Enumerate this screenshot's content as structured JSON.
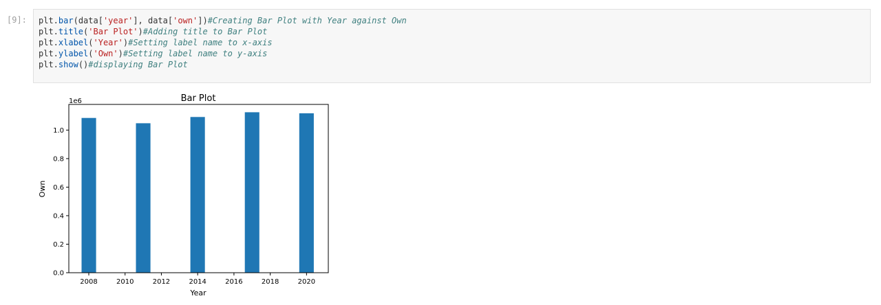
{
  "prompt": "[9]:",
  "code_lines": [
    [
      {
        "t": "plt.",
        "c": "plain"
      },
      {
        "t": "bar",
        "c": "fn"
      },
      {
        "t": "(data[",
        "c": "plain"
      },
      {
        "t": "'year'",
        "c": "str"
      },
      {
        "t": "], data[",
        "c": "plain"
      },
      {
        "t": "'own'",
        "c": "str"
      },
      {
        "t": "])",
        "c": "plain"
      },
      {
        "t": "#Creating Bar Plot with Year against Own",
        "c": "com"
      }
    ],
    [
      {
        "t": "plt.",
        "c": "plain"
      },
      {
        "t": "title",
        "c": "fn"
      },
      {
        "t": "(",
        "c": "plain"
      },
      {
        "t": "'Bar Plot'",
        "c": "str"
      },
      {
        "t": ")",
        "c": "plain"
      },
      {
        "t": "#Adding title to Bar Plot",
        "c": "com"
      }
    ],
    [
      {
        "t": "plt.",
        "c": "plain"
      },
      {
        "t": "xlabel",
        "c": "fn"
      },
      {
        "t": "(",
        "c": "plain"
      },
      {
        "t": "'Year'",
        "c": "str"
      },
      {
        "t": ")",
        "c": "plain"
      },
      {
        "t": "#Setting label name to x-axis",
        "c": "com"
      }
    ],
    [
      {
        "t": "plt.",
        "c": "plain"
      },
      {
        "t": "ylabel",
        "c": "fn"
      },
      {
        "t": "(",
        "c": "plain"
      },
      {
        "t": "'Own'",
        "c": "str"
      },
      {
        "t": ")",
        "c": "plain"
      },
      {
        "t": "#Setting label name to y-axis",
        "c": "com"
      }
    ],
    [
      {
        "t": "plt.",
        "c": "plain"
      },
      {
        "t": "show",
        "c": "fn"
      },
      {
        "t": "()",
        "c": "plain"
      },
      {
        "t": "#displaying Bar Plot",
        "c": "com"
      }
    ]
  ],
  "chart_data": {
    "type": "bar",
    "title": "Bar Plot",
    "xlabel": "Year",
    "ylabel": "Own",
    "offset_label": "1e6",
    "x": [
      2008,
      2011,
      2014,
      2017,
      2020
    ],
    "values": [
      1.085,
      1.048,
      1.092,
      1.125,
      1.118
    ],
    "value_multiplier": "1e6",
    "bar_width": 0.8,
    "xlim": [
      2006.9,
      2021.2
    ],
    "ylim": [
      0,
      1.18
    ],
    "xticks": [
      2008,
      2010,
      2012,
      2014,
      2016,
      2018,
      2020
    ],
    "yticks": [
      0.0,
      0.2,
      0.4,
      0.6,
      0.8,
      1.0
    ],
    "ytick_labels": [
      "0.0",
      "0.2",
      "0.4",
      "0.6",
      "0.8",
      "1.0"
    ],
    "bar_color": "#1f77b4",
    "grid": false,
    "legend": "none"
  }
}
